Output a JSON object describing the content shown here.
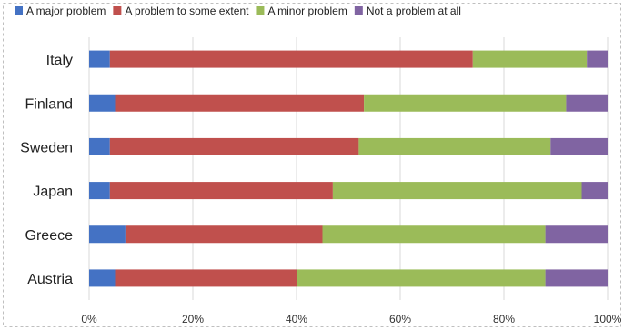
{
  "chart_data": {
    "type": "bar",
    "orientation": "horizontal",
    "stacked": true,
    "percent_stacked": true,
    "categories": [
      "Italy",
      "Finland",
      "Sweden",
      "Japan",
      "Greece",
      "Austria"
    ],
    "series": [
      {
        "name": "A major problem",
        "color": "#4472c4",
        "values": [
          4,
          5,
          4,
          4,
          7,
          5
        ]
      },
      {
        "name": "A problem to some extent",
        "color": "#c0504d",
        "values": [
          70,
          48,
          48,
          43,
          38,
          35
        ]
      },
      {
        "name": "A minor problem",
        "color": "#9bbb59",
        "values": [
          22,
          39,
          37,
          48,
          43,
          48
        ]
      },
      {
        "name": "Not a problem at all",
        "color": "#8064a2",
        "values": [
          4,
          8,
          11,
          5,
          12,
          12
        ]
      }
    ],
    "x_ticks": [
      "0%",
      "20%",
      "40%",
      "60%",
      "80%",
      "100%"
    ],
    "xlim": [
      0,
      100
    ],
    "grid": "vertical",
    "legend": "top"
  }
}
